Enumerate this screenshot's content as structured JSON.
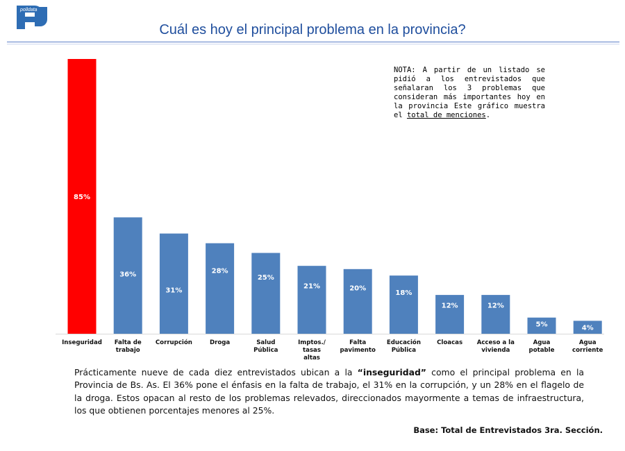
{
  "header": {
    "logo_text": "polldata",
    "title": "Cuál es hoy el principal problema en la provincia?"
  },
  "note": {
    "text": "NOTA: A partir de un listado se pidió a los entrevistados que señalaran los 3 problemas que consideran más importantes hoy en la provincia Este gráfico muestra el ",
    "underlined": "total de menciones",
    "end": "."
  },
  "chart_data": {
    "type": "bar",
    "categories": [
      [
        "Inseguridad"
      ],
      [
        "Falta de",
        "trabajo"
      ],
      [
        "Corrupción"
      ],
      [
        "Droga"
      ],
      [
        "Salud",
        "Pública"
      ],
      [
        "Imptos./",
        "tasas",
        "altas"
      ],
      [
        "Falta",
        "pavimento"
      ],
      [
        "Educación",
        "Pública"
      ],
      [
        "Cloacas"
      ],
      [
        "Acceso a la",
        "vivienda"
      ],
      [
        "Agua",
        "potable"
      ],
      [
        "Agua",
        "corriente"
      ]
    ],
    "values": [
      85,
      36,
      31,
      28,
      25,
      21,
      20,
      18,
      12,
      12,
      5,
      4
    ],
    "data_labels": [
      "85%",
      "36%",
      "31%",
      "28%",
      "25%",
      "21%",
      "20%",
      "18%",
      "12%",
      "12%",
      "5%",
      "4%"
    ],
    "bar_colors": [
      "#FF0000",
      "#4F81BD",
      "#4F81BD",
      "#4F81BD",
      "#4F81BD",
      "#4F81BD",
      "#4F81BD",
      "#4F81BD",
      "#4F81BD",
      "#4F81BD",
      "#4F81BD",
      "#4F81BD"
    ],
    "ylim": [
      0,
      85
    ],
    "grid": false,
    "legend": "none"
  },
  "summary": {
    "part1": "Prácticamente nueve de cada diez entrevistados ubican a la ",
    "highlight": "“inseguridad”",
    "part2": " como el principal problema en la Provincia de Bs. As. El 36% pone el énfasis en la falta de trabajo, el 31% en la corrupción, y un 28% en el flagelo de la droga. Estos opacan al resto de los problemas relevados, direccionados mayormente a temas de infraestructura, los que obtienen porcentajes menores al 25%."
  },
  "footer": {
    "base": "Base: Total de Entrevistados 3ra. Sección."
  },
  "colors": {
    "title": "#1F4E9D",
    "accent_bar": "#FF0000",
    "bar": "#4F81BD",
    "logo": "#2E6DB4"
  }
}
